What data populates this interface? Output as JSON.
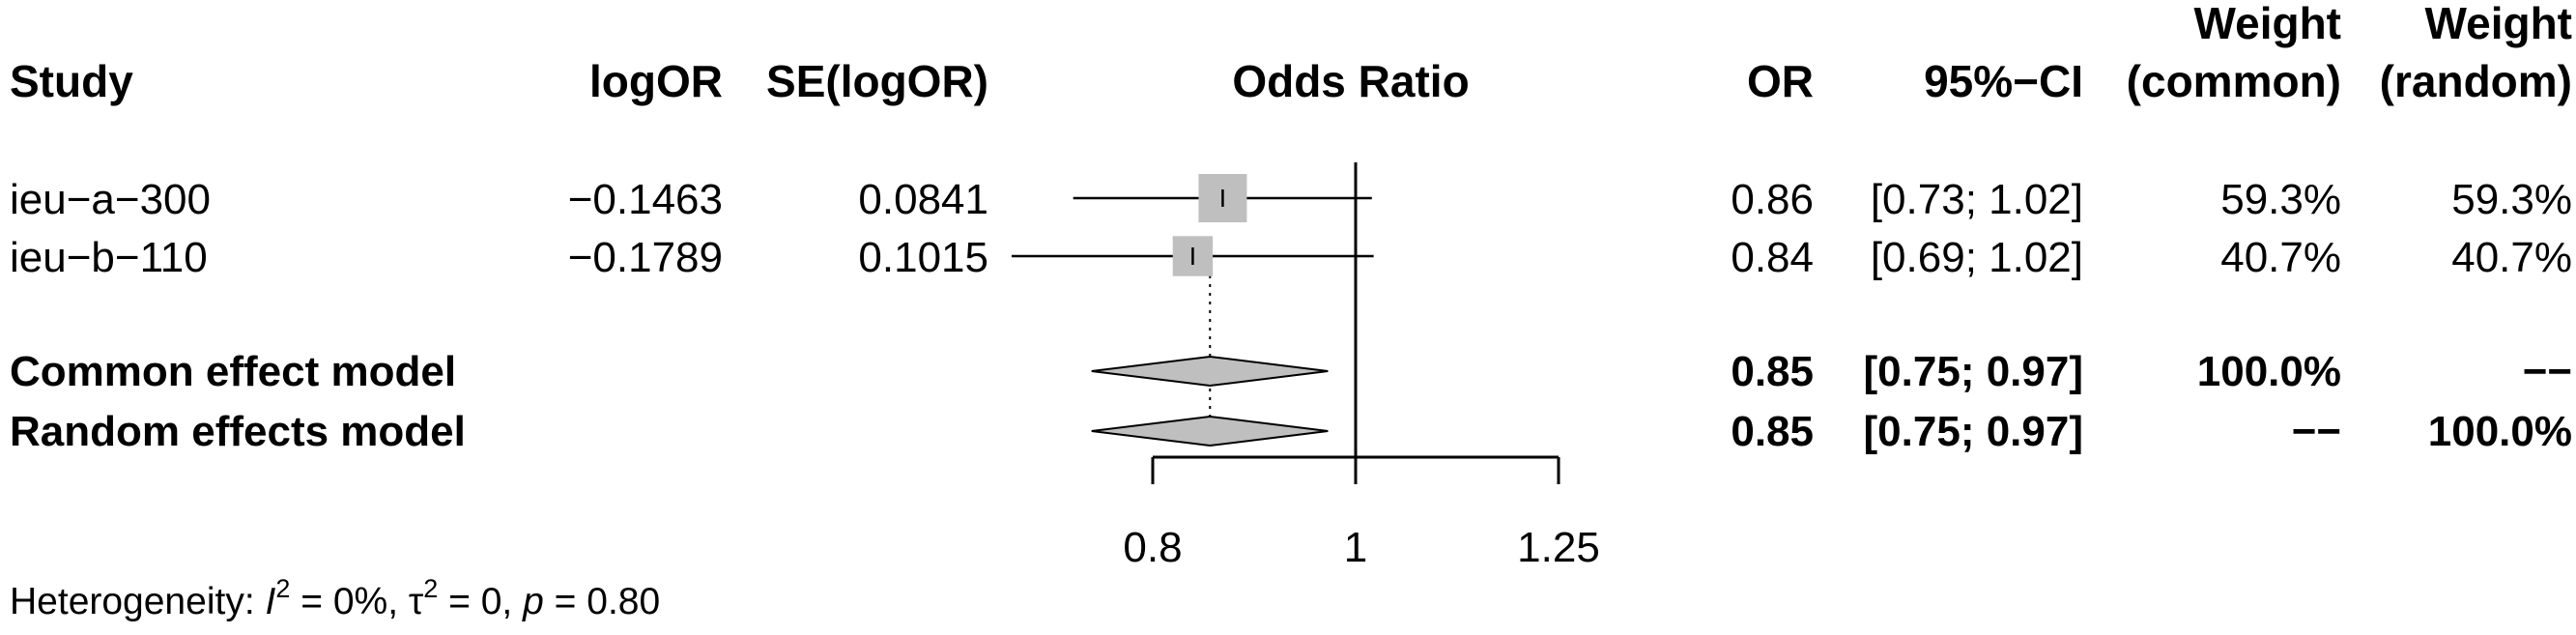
{
  "colors": {
    "box": "#bfbfbf",
    "diamond": "#bfbfbf",
    "line": "#000000",
    "text": "#000000"
  },
  "chart_data": {
    "type": "forest",
    "measure_label": "Odds Ratio",
    "headers": {
      "study": "Study",
      "logor": "logOR",
      "se": "SE(logOR)",
      "plot": "Odds Ratio",
      "or": "OR",
      "ci": "95%−CI",
      "weight_common_top": "Weight",
      "weight_common_bottom": "(common)",
      "weight_random_top": "Weight",
      "weight_random_bottom": "(random)"
    },
    "x_axis": {
      "scale": "log",
      "ticks": [
        0.8,
        1,
        1.25
      ],
      "tick_labels": [
        "0.8",
        "1",
        "1.25"
      ],
      "null_value": 1
    },
    "studies": [
      {
        "name": "ieu−a−300",
        "logOR": "−0.1463",
        "se": "0.0841",
        "or_text": "0.86",
        "ci_text": "[0.73; 1.02]",
        "w_common": "59.3%",
        "w_random": "59.3%",
        "or": 0.864,
        "lower": 0.733,
        "upper": 1.018,
        "weight": 0.593
      },
      {
        "name": "ieu−b−110",
        "logOR": "−0.1789",
        "se": "0.1015",
        "or_text": "0.84",
        "ci_text": "[0.69; 1.02]",
        "w_common": "40.7%",
        "w_random": "40.7%",
        "or": 0.836,
        "lower": 0.685,
        "upper": 1.02,
        "weight": 0.407
      }
    ],
    "models": [
      {
        "name": "Common effect model",
        "or_text": "0.85",
        "ci_text": "[0.75; 0.97]",
        "w_common": "100.0%",
        "w_random": "−−",
        "or": 0.852,
        "lower": 0.748,
        "upper": 0.97
      },
      {
        "name": "Random effects model",
        "or_text": "0.85",
        "ci_text": "[0.75; 0.97]",
        "w_common": "−−",
        "w_random": "100.0%",
        "or": 0.852,
        "lower": 0.748,
        "upper": 0.97
      }
    ],
    "heterogeneity": {
      "prefix": "Heterogeneity: ",
      "i2_symbol": "I",
      "i2_exp": "2",
      "i2_value": " = 0%, ",
      "tau_symbol": "τ",
      "tau_exp": "2",
      "tau_value": " = 0, ",
      "p_symbol": "p",
      "p_value": " = 0.80"
    }
  }
}
